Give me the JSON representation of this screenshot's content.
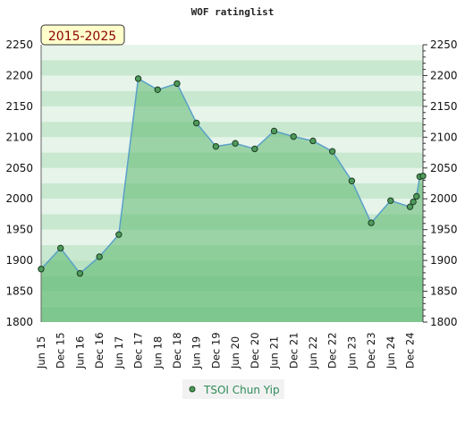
{
  "chart_data": {
    "type": "area",
    "title": "WOF ratinglist",
    "period_label": "2015-2025",
    "ylim": [
      1800,
      2250
    ],
    "yticks": [
      1800,
      1850,
      1900,
      1950,
      2000,
      2050,
      2100,
      2150,
      2200,
      2250
    ],
    "xlim": [
      "2015-06",
      "2025-04"
    ],
    "xticks": [
      {
        "date": "2015-06",
        "label": "Jun 15"
      },
      {
        "date": "2015-12",
        "label": "Dec 15"
      },
      {
        "date": "2016-06",
        "label": "Jun 16"
      },
      {
        "date": "2016-12",
        "label": "Dec 16"
      },
      {
        "date": "2017-06",
        "label": "Jun 17"
      },
      {
        "date": "2017-12",
        "label": "Dec 17"
      },
      {
        "date": "2018-06",
        "label": "Jun 18"
      },
      {
        "date": "2018-12",
        "label": "Dec 18"
      },
      {
        "date": "2019-06",
        "label": "Jun 19"
      },
      {
        "date": "2019-12",
        "label": "Dec 19"
      },
      {
        "date": "2020-06",
        "label": "Jun 20"
      },
      {
        "date": "2020-12",
        "label": "Dec 20"
      },
      {
        "date": "2021-06",
        "label": "Jun 21"
      },
      {
        "date": "2021-12",
        "label": "Dec 21"
      },
      {
        "date": "2022-06",
        "label": "Jun 22"
      },
      {
        "date": "2022-12",
        "label": "Dec 22"
      },
      {
        "date": "2023-06",
        "label": "Jun 23"
      },
      {
        "date": "2023-12",
        "label": "Dec 23"
      },
      {
        "date": "2024-06",
        "label": "Jun 24"
      },
      {
        "date": "2024-12",
        "label": "Dec 24"
      }
    ],
    "series": [
      {
        "name": "TSOI Chun Yip",
        "points": [
          {
            "x": "2015-06",
            "y": 1886
          },
          {
            "x": "2015-12",
            "y": 1920
          },
          {
            "x": "2016-06",
            "y": 1879
          },
          {
            "x": "2016-12",
            "y": 1906
          },
          {
            "x": "2017-06",
            "y": 1942
          },
          {
            "x": "2017-12",
            "y": 2195
          },
          {
            "x": "2018-06",
            "y": 2177
          },
          {
            "x": "2018-12",
            "y": 2187
          },
          {
            "x": "2019-06",
            "y": 2123
          },
          {
            "x": "2019-12",
            "y": 2085
          },
          {
            "x": "2020-06",
            "y": 2090
          },
          {
            "x": "2020-12",
            "y": 2081
          },
          {
            "x": "2021-06",
            "y": 2110
          },
          {
            "x": "2021-12",
            "y": 2101
          },
          {
            "x": "2022-06",
            "y": 2094
          },
          {
            "x": "2022-12",
            "y": 2077
          },
          {
            "x": "2023-06",
            "y": 2029
          },
          {
            "x": "2023-12",
            "y": 1961
          },
          {
            "x": "2024-06",
            "y": 1997
          },
          {
            "x": "2024-12",
            "y": 1987
          },
          {
            "x": "2025-01",
            "y": 1995
          },
          {
            "x": "2025-02",
            "y": 2004
          },
          {
            "x": "2025-03",
            "y": 2036
          },
          {
            "x": "2025-04",
            "y": 2037
          }
        ]
      }
    ],
    "legend": {
      "position": "bottom-center"
    },
    "colors": {
      "line": "#5aa0c8",
      "marker": "#4e9a5a",
      "area": "#5cb86f",
      "band_light": "#e6f4ea",
      "band_mid": "#c8e8cf",
      "badge_bg": "#ffffcc",
      "badge_text": "#8b0000",
      "legend_text": "#2e8b57"
    }
  }
}
